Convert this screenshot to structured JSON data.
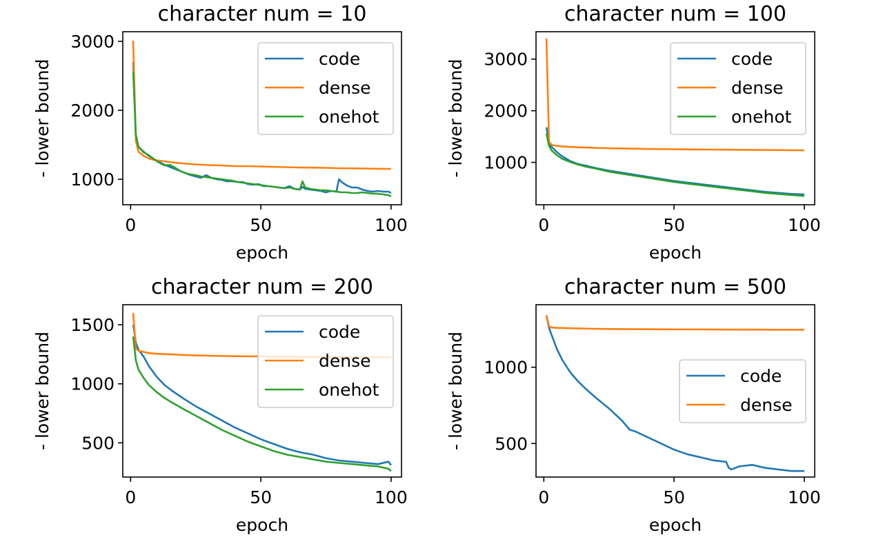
{
  "colors": {
    "code": "#1f77b4",
    "dense": "#ff7f0e",
    "onehot": "#2ca02c"
  },
  "chart_data": [
    {
      "type": "line",
      "title": "character num = 10",
      "xlabel": "epoch",
      "ylabel": "- lower bound",
      "xlim": [
        -3,
        104
      ],
      "ylim": [
        630,
        3140
      ],
      "xticks": [
        0,
        50,
        100
      ],
      "yticks": [
        1000,
        2000,
        3000
      ],
      "legend": "upper right",
      "series": [
        {
          "name": "code",
          "x": [
            1,
            2,
            3,
            5,
            7,
            9,
            11,
            13,
            15,
            17,
            19,
            21,
            23,
            25,
            27,
            29,
            31,
            33,
            35,
            37,
            39,
            41,
            43,
            45,
            47,
            49,
            51,
            53,
            55,
            57,
            59,
            61,
            63,
            65,
            66,
            67,
            69,
            71,
            73,
            75,
            77,
            79,
            80,
            81,
            83,
            85,
            87,
            89,
            91,
            93,
            95,
            97,
            99,
            100
          ],
          "y": [
            2700,
            1620,
            1470,
            1400,
            1340,
            1290,
            1250,
            1210,
            1180,
            1150,
            1120,
            1090,
            1060,
            1040,
            1020,
            1060,
            1020,
            1000,
            990,
            970,
            970,
            960,
            960,
            930,
            920,
            930,
            900,
            900,
            890,
            880,
            870,
            900,
            860,
            850,
            890,
            860,
            850,
            840,
            830,
            810,
            830,
            820,
            1000,
            960,
            910,
            880,
            880,
            850,
            830,
            820,
            830,
            820,
            820,
            800
          ]
        },
        {
          "name": "dense",
          "x": [
            1,
            2,
            3,
            5,
            7,
            9,
            11,
            13,
            15,
            17,
            20,
            25,
            30,
            35,
            40,
            45,
            50,
            55,
            60,
            65,
            70,
            75,
            80,
            85,
            90,
            95,
            100
          ],
          "y": [
            3010,
            1560,
            1400,
            1340,
            1300,
            1280,
            1270,
            1260,
            1250,
            1240,
            1230,
            1215,
            1205,
            1200,
            1190,
            1190,
            1185,
            1180,
            1175,
            1170,
            1168,
            1165,
            1160,
            1158,
            1155,
            1152,
            1150
          ]
        },
        {
          "name": "onehot",
          "x": [
            1,
            2,
            3,
            5,
            7,
            9,
            11,
            13,
            15,
            17,
            19,
            21,
            23,
            25,
            27,
            29,
            31,
            33,
            35,
            37,
            39,
            41,
            43,
            45,
            47,
            49,
            51,
            53,
            55,
            57,
            59,
            61,
            63,
            65,
            66,
            67,
            69,
            71,
            73,
            75,
            77,
            79,
            81,
            83,
            85,
            87,
            89,
            91,
            93,
            95,
            97,
            99,
            100
          ],
          "y": [
            2560,
            1650,
            1470,
            1390,
            1350,
            1290,
            1240,
            1200,
            1210,
            1170,
            1120,
            1090,
            1070,
            1060,
            1040,
            1030,
            1020,
            1010,
            1000,
            990,
            980,
            960,
            950,
            940,
            930,
            920,
            910,
            900,
            890,
            880,
            870,
            880,
            860,
            850,
            970,
            880,
            860,
            850,
            840,
            840,
            830,
            820,
            810,
            810,
            800,
            800,
            810,
            800,
            790,
            790,
            780,
            770,
            750
          ]
        }
      ]
    },
    {
      "type": "line",
      "title": "character num = 100",
      "xlabel": "epoch",
      "ylabel": "- lower bound",
      "xlim": [
        -3,
        104
      ],
      "ylim": [
        180,
        3530
      ],
      "xticks": [
        0,
        50,
        100
      ],
      "yticks": [
        1000,
        2000,
        3000
      ],
      "legend": "upper right",
      "series": [
        {
          "name": "code",
          "x": [
            1,
            2,
            3,
            5,
            7,
            10,
            13,
            16,
            20,
            25,
            30,
            35,
            40,
            45,
            50,
            55,
            60,
            65,
            70,
            75,
            80,
            85,
            90,
            95,
            100
          ],
          "y": [
            1680,
            1400,
            1300,
            1200,
            1120,
            1030,
            970,
            940,
            890,
            840,
            800,
            760,
            720,
            680,
            640,
            610,
            580,
            550,
            520,
            490,
            460,
            430,
            410,
            390,
            380
          ]
        },
        {
          "name": "dense",
          "x": [
            1,
            2,
            3,
            5,
            7,
            10,
            15,
            20,
            25,
            30,
            35,
            40,
            45,
            50,
            55,
            60,
            65,
            70,
            75,
            80,
            85,
            90,
            95,
            100
          ],
          "y": [
            3400,
            1400,
            1340,
            1320,
            1310,
            1300,
            1290,
            1280,
            1275,
            1270,
            1265,
            1260,
            1258,
            1255,
            1252,
            1250,
            1248,
            1246,
            1244,
            1242,
            1240,
            1238,
            1236,
            1235
          ]
        },
        {
          "name": "onehot",
          "x": [
            1,
            2,
            3,
            5,
            7,
            10,
            13,
            16,
            20,
            25,
            30,
            35,
            40,
            45,
            50,
            55,
            60,
            65,
            70,
            75,
            80,
            85,
            90,
            95,
            100
          ],
          "y": [
            1560,
            1320,
            1230,
            1140,
            1070,
            1010,
            960,
            920,
            880,
            820,
            780,
            740,
            700,
            660,
            620,
            590,
            560,
            530,
            500,
            470,
            440,
            410,
            390,
            370,
            350
          ]
        }
      ]
    },
    {
      "type": "line",
      "title": "character num = 200",
      "xlabel": "epoch",
      "ylabel": "- lower bound",
      "xlim": [
        -3,
        104
      ],
      "ylim": [
        210,
        1670
      ],
      "xticks": [
        0,
        50,
        100
      ],
      "yticks": [
        500,
        1000,
        1500
      ],
      "legend": "upper right",
      "series": [
        {
          "name": "code",
          "x": [
            1,
            2,
            3,
            5,
            7,
            10,
            13,
            16,
            20,
            25,
            30,
            35,
            40,
            45,
            50,
            55,
            60,
            65,
            70,
            75,
            80,
            85,
            90,
            95,
            99,
            100
          ],
          "y": [
            1500,
            1350,
            1290,
            1230,
            1150,
            1060,
            990,
            940,
            880,
            810,
            750,
            690,
            630,
            580,
            530,
            490,
            450,
            420,
            400,
            370,
            350,
            340,
            330,
            320,
            340,
            310
          ]
        },
        {
          "name": "dense",
          "x": [
            1,
            2,
            3,
            5,
            7,
            10,
            15,
            20,
            25,
            30,
            35,
            40,
            45,
            50,
            55,
            60,
            65,
            70,
            75,
            80,
            85,
            90,
            95,
            100
          ],
          "y": [
            1600,
            1300,
            1280,
            1270,
            1260,
            1255,
            1250,
            1245,
            1240,
            1238,
            1236,
            1234,
            1233,
            1232,
            1231,
            1230,
            1229,
            1228,
            1228,
            1227,
            1227,
            1226,
            1226,
            1225
          ]
        },
        {
          "name": "onehot",
          "x": [
            1,
            2,
            3,
            5,
            7,
            10,
            13,
            16,
            20,
            25,
            30,
            35,
            40,
            45,
            50,
            55,
            60,
            65,
            70,
            75,
            80,
            85,
            90,
            95,
            99,
            100
          ],
          "y": [
            1400,
            1200,
            1120,
            1050,
            990,
            930,
            880,
            840,
            790,
            730,
            670,
            610,
            560,
            510,
            470,
            430,
            400,
            380,
            360,
            340,
            330,
            320,
            310,
            300,
            280,
            260
          ]
        }
      ]
    },
    {
      "type": "line",
      "title": "character num = 500",
      "xlabel": "epoch",
      "ylabel": "- lower bound",
      "xlim": [
        -3,
        104
      ],
      "ylim": [
        280,
        1410
      ],
      "xticks": [
        0,
        50,
        100
      ],
      "yticks": [
        500,
        1000
      ],
      "legend": "center right",
      "series": [
        {
          "name": "code",
          "x": [
            1,
            2,
            3,
            5,
            7,
            10,
            13,
            16,
            20,
            25,
            30,
            33,
            35,
            40,
            45,
            50,
            55,
            60,
            65,
            70,
            71,
            72,
            75,
            80,
            85,
            90,
            95,
            100
          ],
          "y": [
            1340,
            1260,
            1210,
            1120,
            1050,
            970,
            910,
            860,
            800,
            730,
            650,
            590,
            580,
            540,
            500,
            460,
            430,
            410,
            390,
            380,
            340,
            330,
            350,
            360,
            340,
            330,
            320,
            320
          ]
        },
        {
          "name": "dense",
          "x": [
            1,
            2,
            3,
            5,
            10,
            15,
            20,
            30,
            40,
            50,
            60,
            70,
            80,
            90,
            100
          ],
          "y": [
            1340,
            1270,
            1260,
            1258,
            1256,
            1254,
            1252,
            1250,
            1249,
            1248,
            1248,
            1247,
            1247,
            1246,
            1246
          ]
        }
      ]
    }
  ]
}
